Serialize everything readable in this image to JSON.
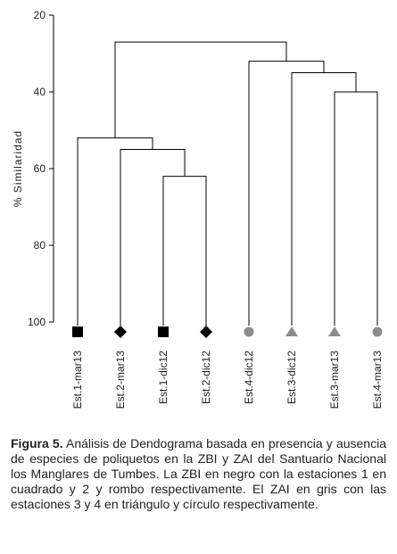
{
  "chart_data": {
    "type": "dendrogram",
    "y_label": "% Similaridad",
    "ylim": [
      100,
      20
    ],
    "yticks": [
      20,
      40,
      60,
      80,
      100
    ],
    "leaves": [
      {
        "label": "Est.1-mar13",
        "marker": "square",
        "color": "#000000"
      },
      {
        "label": "Est.2-mar13",
        "marker": "diamond",
        "color": "#000000"
      },
      {
        "label": "Est.1-dic12",
        "marker": "square",
        "color": "#000000"
      },
      {
        "label": "Est.2-dic12",
        "marker": "diamond",
        "color": "#000000"
      },
      {
        "label": "Est.4-dic12",
        "marker": "circle",
        "color": "#8c8c8c"
      },
      {
        "label": "Est.3-dic12",
        "marker": "triangle",
        "color": "#8c8c8c"
      },
      {
        "label": "Est.3-mar13",
        "marker": "triangle",
        "color": "#8c8c8c"
      },
      {
        "label": "Est.4-mar13",
        "marker": "circle",
        "color": "#8c8c8c"
      }
    ],
    "merges": [
      {
        "left": 2,
        "right": 3,
        "value": 62
      },
      {
        "left": 1,
        "right": 8,
        "value": 55
      },
      {
        "left": 0,
        "right": 9,
        "value": 52
      },
      {
        "left": 6,
        "right": 7,
        "value": 40
      },
      {
        "left": 5,
        "right": 11,
        "value": 35
      },
      {
        "left": 4,
        "right": 12,
        "value": 32
      },
      {
        "left": 10,
        "right": 13,
        "value": 27
      }
    ]
  },
  "caption": {
    "label": "Figura 5.",
    "text": "Análisis de Dendograma basada en presencia y ausencia de especies de poliquetos en la ZBI y ZAI del Santuario Nacional los Manglares de Tumbes. La ZBI en negro con la estaciones 1 en cuadrado y 2 y rombo respectivamente. El ZAI en gris con las estaciones 3 y 4 en triángulo y círculo respectivamente."
  }
}
